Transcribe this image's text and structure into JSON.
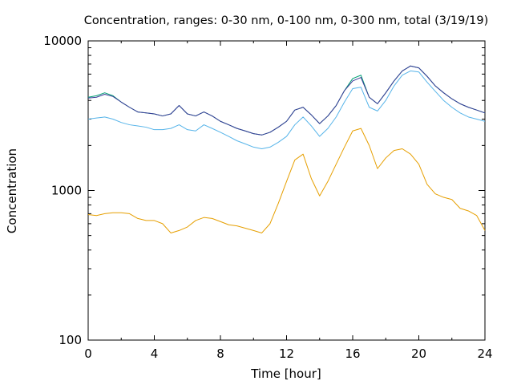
{
  "chart_data": {
    "type": "line",
    "title": "Concentration, ranges: 0-30 nm, 0-100 nm, 0-300 nm, total (3/19/19)",
    "xlabel": "Time [hour]",
    "ylabel": "Concentration",
    "xlim": [
      0,
      24
    ],
    "ylim": [
      100,
      10000
    ],
    "yscale": "log",
    "grid": false,
    "legend": "none",
    "x_ticks": [
      0,
      4,
      8,
      12,
      16,
      20,
      24
    ],
    "x_tick_labels": [
      "0",
      "4",
      "8",
      "12",
      "16",
      "20",
      "24"
    ],
    "y_ticks": [
      100,
      1000,
      10000
    ],
    "y_tick_labels": [
      "100",
      "1000",
      "10000"
    ],
    "x": [
      0,
      0.5,
      1,
      1.5,
      2,
      2.5,
      3,
      3.5,
      4,
      4.5,
      5,
      5.5,
      6,
      6.5,
      7,
      7.5,
      8,
      8.5,
      9,
      9.5,
      10,
      10.5,
      11,
      11.5,
      12,
      12.5,
      13,
      13.5,
      14,
      14.5,
      15,
      15.5,
      16,
      16.5,
      17,
      17.5,
      18,
      18.5,
      19,
      19.5,
      20,
      20.5,
      21,
      21.5,
      22,
      22.5,
      23,
      23.5,
      24
    ],
    "series": [
      {
        "color": "#e69f00",
        "values": [
          690,
          680,
          700,
          710,
          710,
          700,
          650,
          630,
          630,
          600,
          520,
          540,
          570,
          630,
          660,
          650,
          620,
          590,
          580,
          560,
          540,
          520,
          600,
          820,
          1150,
          1600,
          1750,
          1200,
          920,
          1150,
          1500,
          1950,
          2500,
          2600,
          2000,
          1400,
          1650,
          1850,
          1900,
          1750,
          1500,
          1100,
          950,
          900,
          870,
          760,
          730,
          680,
          540
        ]
      },
      {
        "color": "#56b4e9",
        "values": [
          3000,
          3050,
          3100,
          3000,
          2850,
          2750,
          2700,
          2650,
          2550,
          2550,
          2600,
          2750,
          2550,
          2500,
          2750,
          2600,
          2450,
          2300,
          2150,
          2050,
          1950,
          1900,
          1950,
          2100,
          2300,
          2750,
          3100,
          2700,
          2300,
          2600,
          3100,
          3900,
          4800,
          4900,
          3600,
          3400,
          4000,
          5000,
          5900,
          6300,
          6200,
          5300,
          4600,
          4000,
          3600,
          3300,
          3100,
          3000,
          2900
        ]
      },
      {
        "color": "#009e73",
        "values": [
          4200,
          4300,
          4500,
          4300,
          3900,
          3600,
          3350,
          3300,
          3250,
          3150,
          3250,
          3700,
          3250,
          3150,
          3350,
          3150,
          2900,
          2750,
          2600,
          2500,
          2400,
          2350,
          2450,
          2650,
          2900,
          3450,
          3600,
          3200,
          2800,
          3150,
          3700,
          4650,
          5600,
          5900,
          4200,
          3800,
          4500,
          5400,
          6300,
          6800,
          6600,
          5800,
          5000,
          4500,
          4100,
          3800,
          3600,
          3450,
          3300
        ]
      },
      {
        "color": "#3a3a99",
        "values": [
          4150,
          4200,
          4400,
          4250,
          3900,
          3600,
          3350,
          3300,
          3250,
          3150,
          3250,
          3700,
          3250,
          3150,
          3350,
          3150,
          2900,
          2750,
          2600,
          2500,
          2400,
          2350,
          2450,
          2650,
          2900,
          3450,
          3600,
          3200,
          2800,
          3150,
          3700,
          4650,
          5400,
          5700,
          4200,
          3800,
          4500,
          5400,
          6300,
          6800,
          6600,
          5800,
          5000,
          4500,
          4100,
          3800,
          3600,
          3450,
          3300
        ]
      }
    ]
  }
}
